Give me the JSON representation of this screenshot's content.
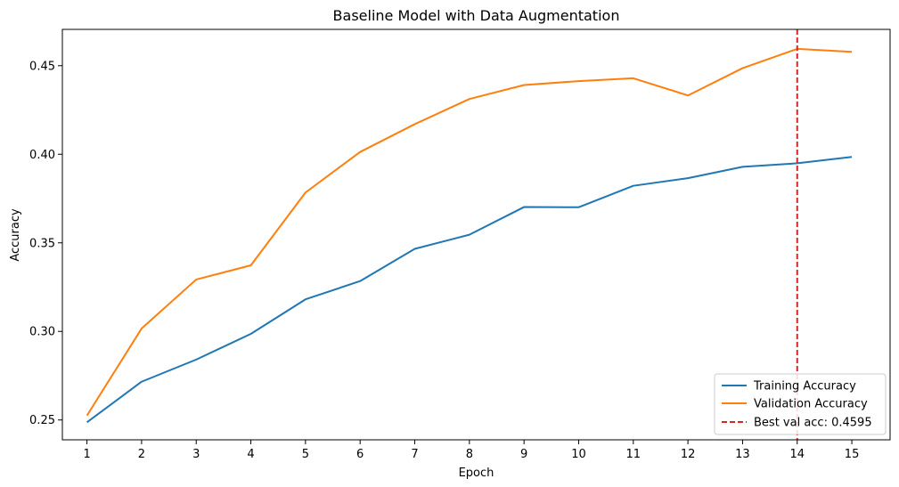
{
  "chart_data": {
    "type": "line",
    "title": "Baseline Model with Data Augmentation",
    "xlabel": "Epoch",
    "ylabel": "Accuracy",
    "x": [
      1,
      2,
      3,
      4,
      5,
      6,
      7,
      8,
      9,
      10,
      11,
      12,
      13,
      14,
      15
    ],
    "xlim": [
      0.55,
      15.7
    ],
    "ylim": [
      0.2388,
      0.4705
    ],
    "yticks": [
      0.25,
      0.3,
      0.35,
      0.4,
      0.45
    ],
    "ytick_labels": [
      "0.25",
      "0.30",
      "0.35",
      "0.40",
      "0.45"
    ],
    "xtick_labels": [
      "1",
      "2",
      "3",
      "4",
      "5",
      "6",
      "7",
      "8",
      "9",
      "10",
      "11",
      "12",
      "13",
      "14",
      "15"
    ],
    "grid": false,
    "legend_position": "lower-right",
    "series": [
      {
        "name": "Training Accuracy",
        "color": "#1f77b4",
        "values": [
          0.2487,
          0.2716,
          0.2841,
          0.2986,
          0.3181,
          0.3284,
          0.3466,
          0.3546,
          0.3702,
          0.3701,
          0.3822,
          0.3865,
          0.3929,
          0.3949,
          0.3985
        ]
      },
      {
        "name": "Validation Accuracy",
        "color": "#ff7f0e",
        "values": [
          0.2525,
          0.3016,
          0.3293,
          0.3373,
          0.3784,
          0.4013,
          0.417,
          0.4312,
          0.4391,
          0.4413,
          0.4429,
          0.4332,
          0.4486,
          0.4595,
          0.4578
        ]
      }
    ],
    "annotations": [
      {
        "type": "vline",
        "x": 14,
        "label": "Best val acc: 0.4595",
        "color": "#d62728",
        "style": "dashed"
      }
    ]
  }
}
